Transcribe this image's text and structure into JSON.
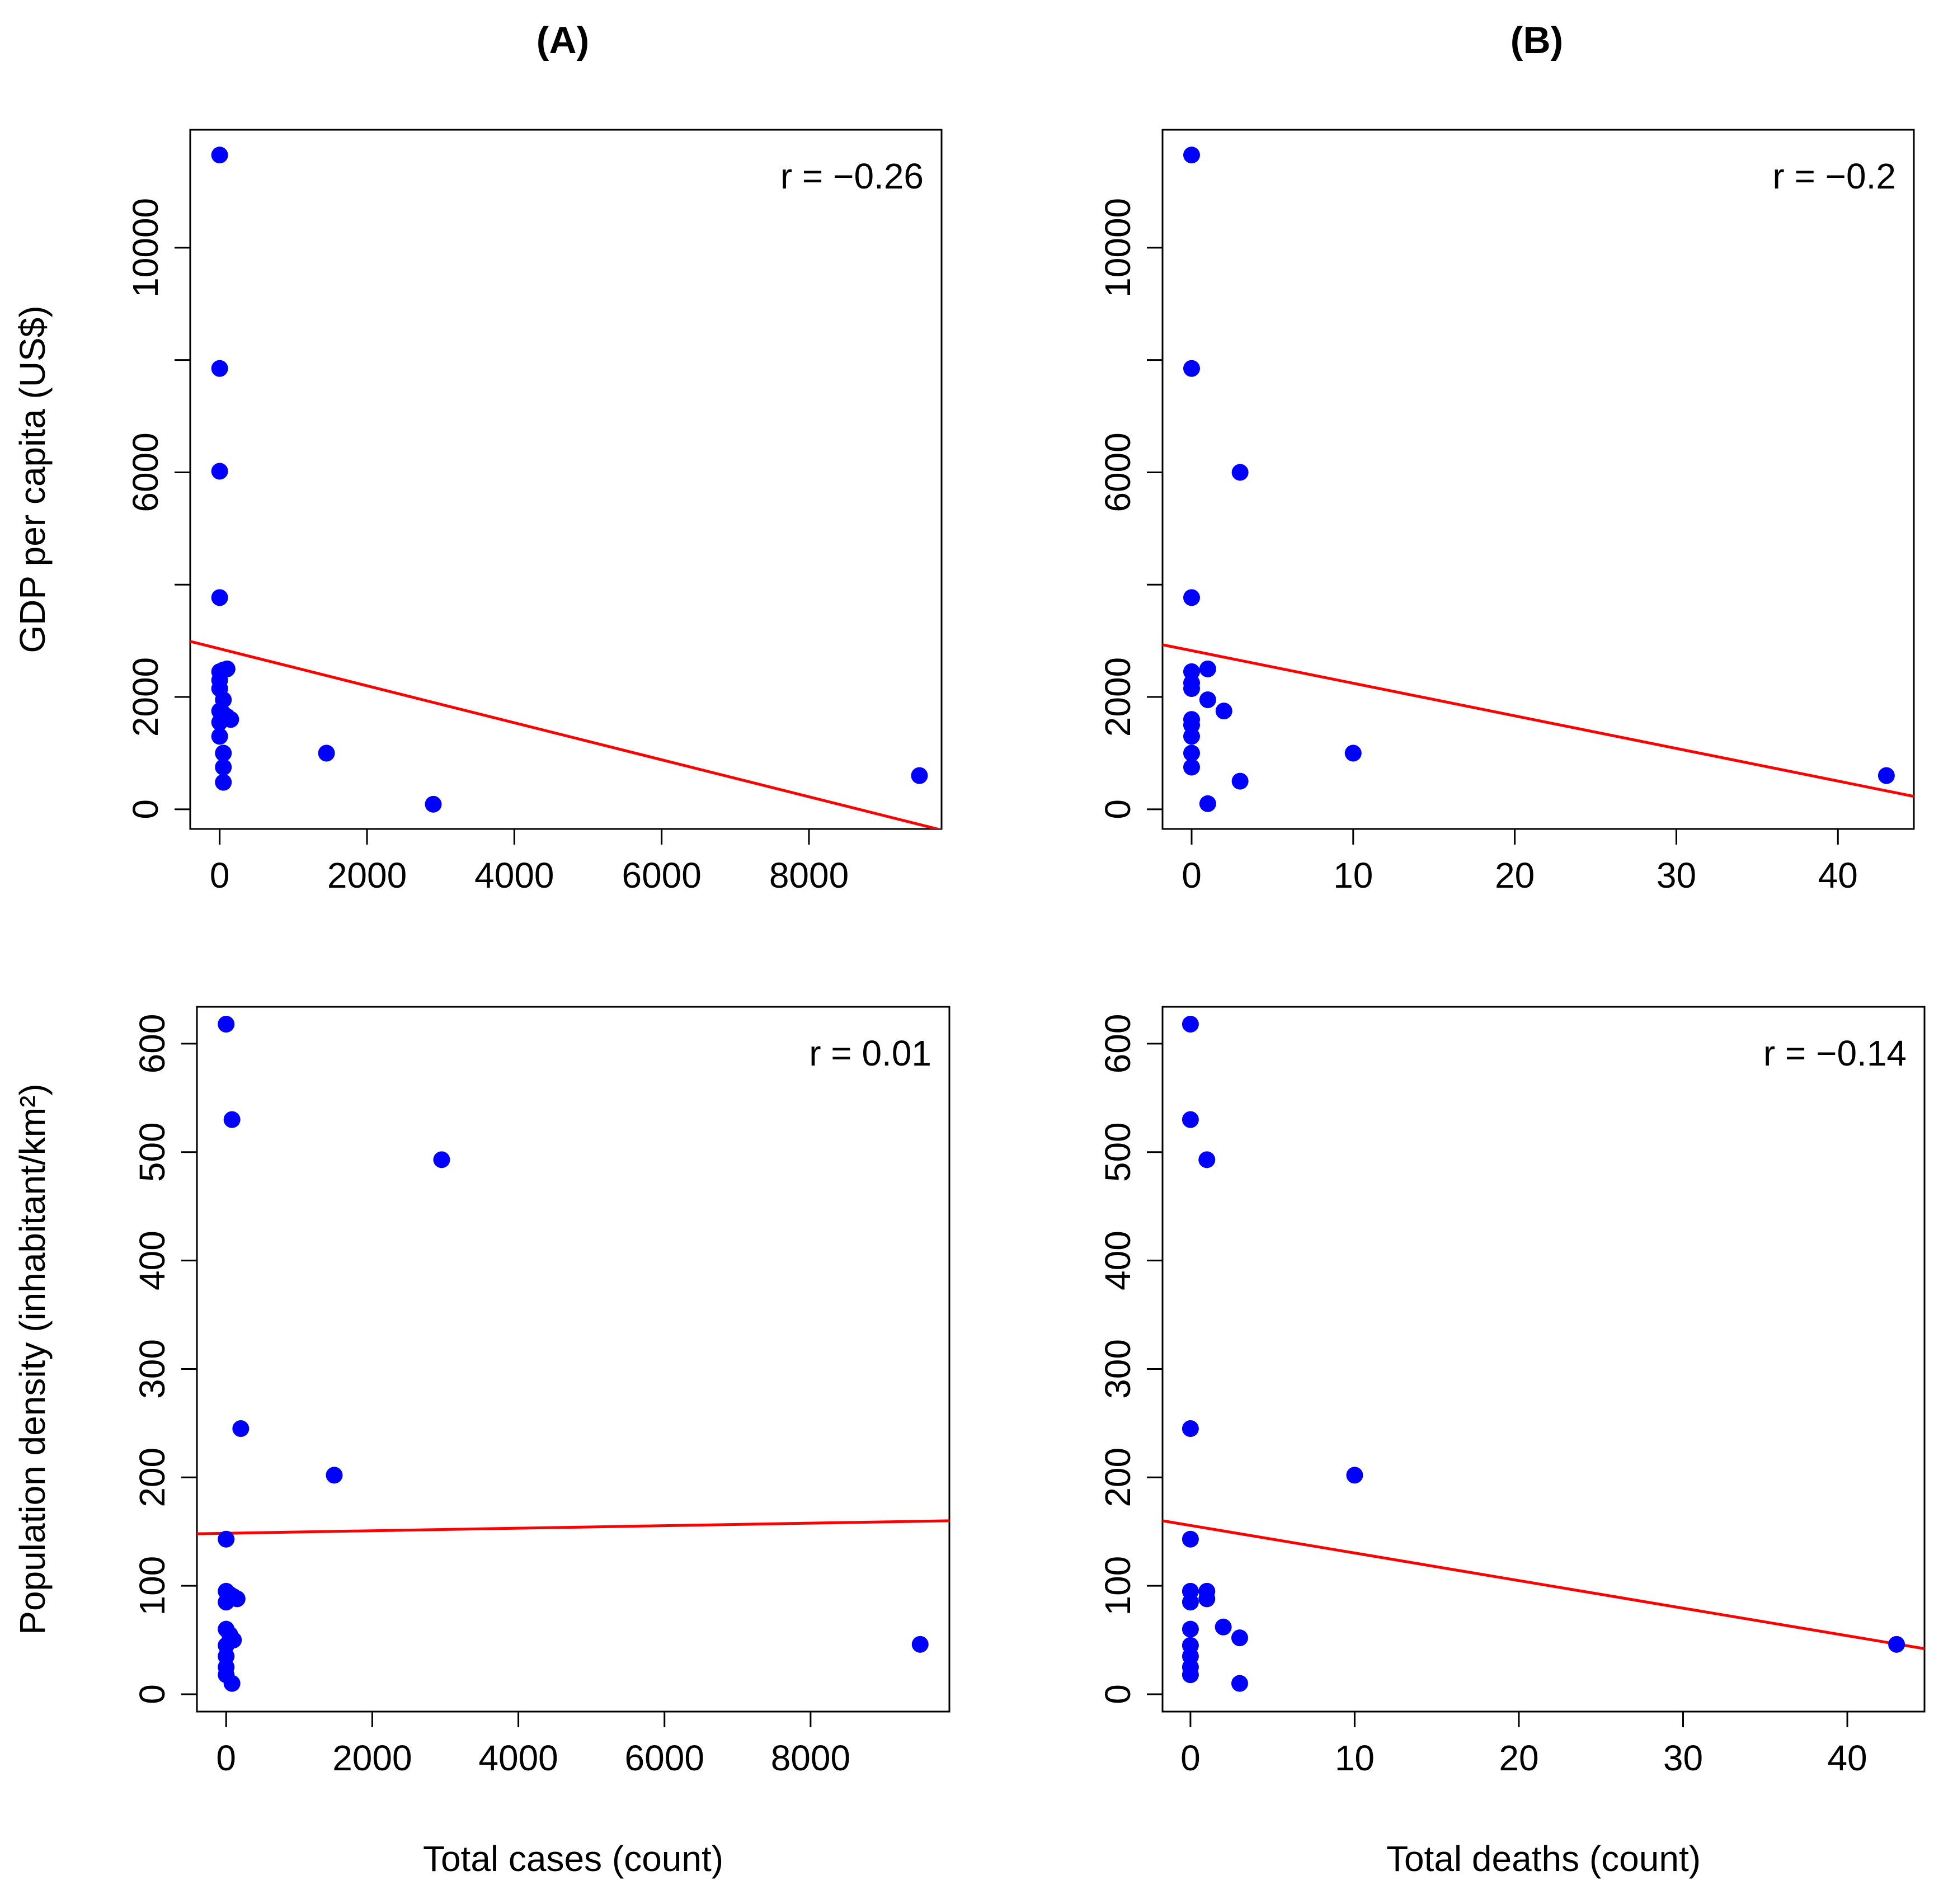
{
  "column_titles": {
    "a": "(A)",
    "b": "(B)"
  },
  "colors": {
    "points": "#0000ff",
    "fit_line": "#ff0000",
    "axis": "#000000"
  },
  "chart_data": [
    {
      "id": "top-left",
      "type": "scatter",
      "title": "",
      "xlabel": "",
      "ylabel": "GDP per capita (US$)",
      "xlim": [
        -400,
        9800
      ],
      "ylim": [
        -350,
        12100
      ],
      "xticks": [
        0,
        2000,
        4000,
        6000,
        8000
      ],
      "xtick_labels": [
        "0",
        "2000",
        "4000",
        "6000",
        "8000"
      ],
      "yticks": [
        0,
        2000,
        6000,
        10000
      ],
      "ytick_labels": [
        "0",
        "2000",
        "6000",
        "10000"
      ],
      "yticks_minor": [
        4000,
        8000
      ],
      "annotation": "r = −0.26",
      "fit_line": {
        "x": [
          -400,
          9800
        ],
        "y": [
          2990,
          -370
        ]
      },
      "points": [
        {
          "x": 0,
          "y": 11650
        },
        {
          "x": 0,
          "y": 7850
        },
        {
          "x": 0,
          "y": 6020
        },
        {
          "x": 0,
          "y": 3770
        },
        {
          "x": 0,
          "y": 2450
        },
        {
          "x": 50,
          "y": 2480
        },
        {
          "x": 100,
          "y": 2500
        },
        {
          "x": 0,
          "y": 2300
        },
        {
          "x": 0,
          "y": 2150
        },
        {
          "x": 50,
          "y": 1950
        },
        {
          "x": 0,
          "y": 1750
        },
        {
          "x": 50,
          "y": 1700
        },
        {
          "x": 100,
          "y": 1650
        },
        {
          "x": 150,
          "y": 1600
        },
        {
          "x": 0,
          "y": 1550
        },
        {
          "x": 0,
          "y": 1300
        },
        {
          "x": 50,
          "y": 1000
        },
        {
          "x": 50,
          "y": 750
        },
        {
          "x": 50,
          "y": 480
        },
        {
          "x": 1450,
          "y": 1000
        },
        {
          "x": 2900,
          "y": 90
        },
        {
          "x": 9500,
          "y": 600
        }
      ]
    },
    {
      "id": "top-right",
      "type": "scatter",
      "title": "",
      "xlabel": "",
      "ylabel": "",
      "xlim": [
        -1.8,
        44.7
      ],
      "ylim": [
        -350,
        12100
      ],
      "xticks": [
        0,
        10,
        20,
        30,
        40
      ],
      "xtick_labels": [
        "0",
        "10",
        "20",
        "30",
        "40"
      ],
      "yticks": [
        0,
        2000,
        6000,
        10000
      ],
      "ytick_labels": [
        "0",
        "2000",
        "6000",
        "10000"
      ],
      "yticks_minor": [
        4000,
        8000
      ],
      "annotation": "r = −0.2",
      "fit_line": {
        "x": [
          -1.8,
          44.7
        ],
        "y": [
          2930,
          230
        ]
      },
      "points": [
        {
          "x": 0,
          "y": 11650
        },
        {
          "x": 0,
          "y": 7850
        },
        {
          "x": 3,
          "y": 6000
        },
        {
          "x": 0,
          "y": 3770
        },
        {
          "x": 0,
          "y": 2450
        },
        {
          "x": 1,
          "y": 2500
        },
        {
          "x": 0,
          "y": 2250
        },
        {
          "x": 0,
          "y": 2150
        },
        {
          "x": 1,
          "y": 1950
        },
        {
          "x": 2,
          "y": 1750
        },
        {
          "x": 0,
          "y": 1600
        },
        {
          "x": 0,
          "y": 1500
        },
        {
          "x": 0,
          "y": 1300
        },
        {
          "x": 0,
          "y": 1000
        },
        {
          "x": 0,
          "y": 750
        },
        {
          "x": 3,
          "y": 500
        },
        {
          "x": 1,
          "y": 100
        },
        {
          "x": 10,
          "y": 1000
        },
        {
          "x": 43,
          "y": 600
        }
      ]
    },
    {
      "id": "bottom-left",
      "type": "scatter",
      "title": "",
      "xlabel": "Total cases (count)",
      "ylabel": "Population density (inhabitant/km²)",
      "xlim": [
        -400,
        9900
      ],
      "ylim": [
        -16,
        634
      ],
      "xticks": [
        0,
        2000,
        4000,
        6000,
        8000
      ],
      "xtick_labels": [
        "0",
        "2000",
        "4000",
        "6000",
        "8000"
      ],
      "yticks": [
        0,
        100,
        200,
        300,
        400,
        500,
        600
      ],
      "ytick_labels": [
        "0",
        "100",
        "200",
        "300",
        "400",
        "500",
        "600"
      ],
      "annotation": "r = 0.01",
      "fit_line": {
        "x": [
          -400,
          9900
        ],
        "y": [
          148,
          160
        ]
      },
      "points": [
        {
          "x": 0,
          "y": 618
        },
        {
          "x": 80,
          "y": 530
        },
        {
          "x": 200,
          "y": 245
        },
        {
          "x": 0,
          "y": 143
        },
        {
          "x": 0,
          "y": 95
        },
        {
          "x": 50,
          "y": 92
        },
        {
          "x": 100,
          "y": 90
        },
        {
          "x": 150,
          "y": 88
        },
        {
          "x": 0,
          "y": 85
        },
        {
          "x": 0,
          "y": 60
        },
        {
          "x": 50,
          "y": 55
        },
        {
          "x": 100,
          "y": 50
        },
        {
          "x": 0,
          "y": 45
        },
        {
          "x": 0,
          "y": 35
        },
        {
          "x": 0,
          "y": 25
        },
        {
          "x": 0,
          "y": 18
        },
        {
          "x": 80,
          "y": 10
        },
        {
          "x": 1480,
          "y": 202
        },
        {
          "x": 2950,
          "y": 493
        },
        {
          "x": 9500,
          "y": 46
        }
      ]
    },
    {
      "id": "bottom-right",
      "type": "scatter",
      "title": "",
      "xlabel": "Total deaths (count)",
      "ylabel": "",
      "xlim": [
        -1.7,
        44.7
      ],
      "ylim": [
        -16,
        634
      ],
      "xticks": [
        0,
        10,
        20,
        30,
        40
      ],
      "xtick_labels": [
        "0",
        "10",
        "20",
        "30",
        "40"
      ],
      "yticks": [
        0,
        100,
        200,
        300,
        400,
        500,
        600
      ],
      "ytick_labels": [
        "0",
        "100",
        "200",
        "300",
        "400",
        "500",
        "600"
      ],
      "annotation": "r = −0.14",
      "fit_line": {
        "x": [
          -1.7,
          44.7
        ],
        "y": [
          160,
          42
        ]
      },
      "points": [
        {
          "x": 0,
          "y": 618
        },
        {
          "x": 0,
          "y": 530
        },
        {
          "x": 1,
          "y": 493
        },
        {
          "x": 0,
          "y": 245
        },
        {
          "x": 0,
          "y": 143
        },
        {
          "x": 0,
          "y": 95
        },
        {
          "x": 1,
          "y": 95
        },
        {
          "x": 1,
          "y": 88
        },
        {
          "x": 0,
          "y": 85
        },
        {
          "x": 0,
          "y": 60
        },
        {
          "x": 2,
          "y": 62
        },
        {
          "x": 3,
          "y": 52
        },
        {
          "x": 0,
          "y": 45
        },
        {
          "x": 0,
          "y": 35
        },
        {
          "x": 0,
          "y": 25
        },
        {
          "x": 0,
          "y": 18
        },
        {
          "x": 3,
          "y": 10
        },
        {
          "x": 10,
          "y": 202
        },
        {
          "x": 43,
          "y": 46
        }
      ]
    }
  ]
}
